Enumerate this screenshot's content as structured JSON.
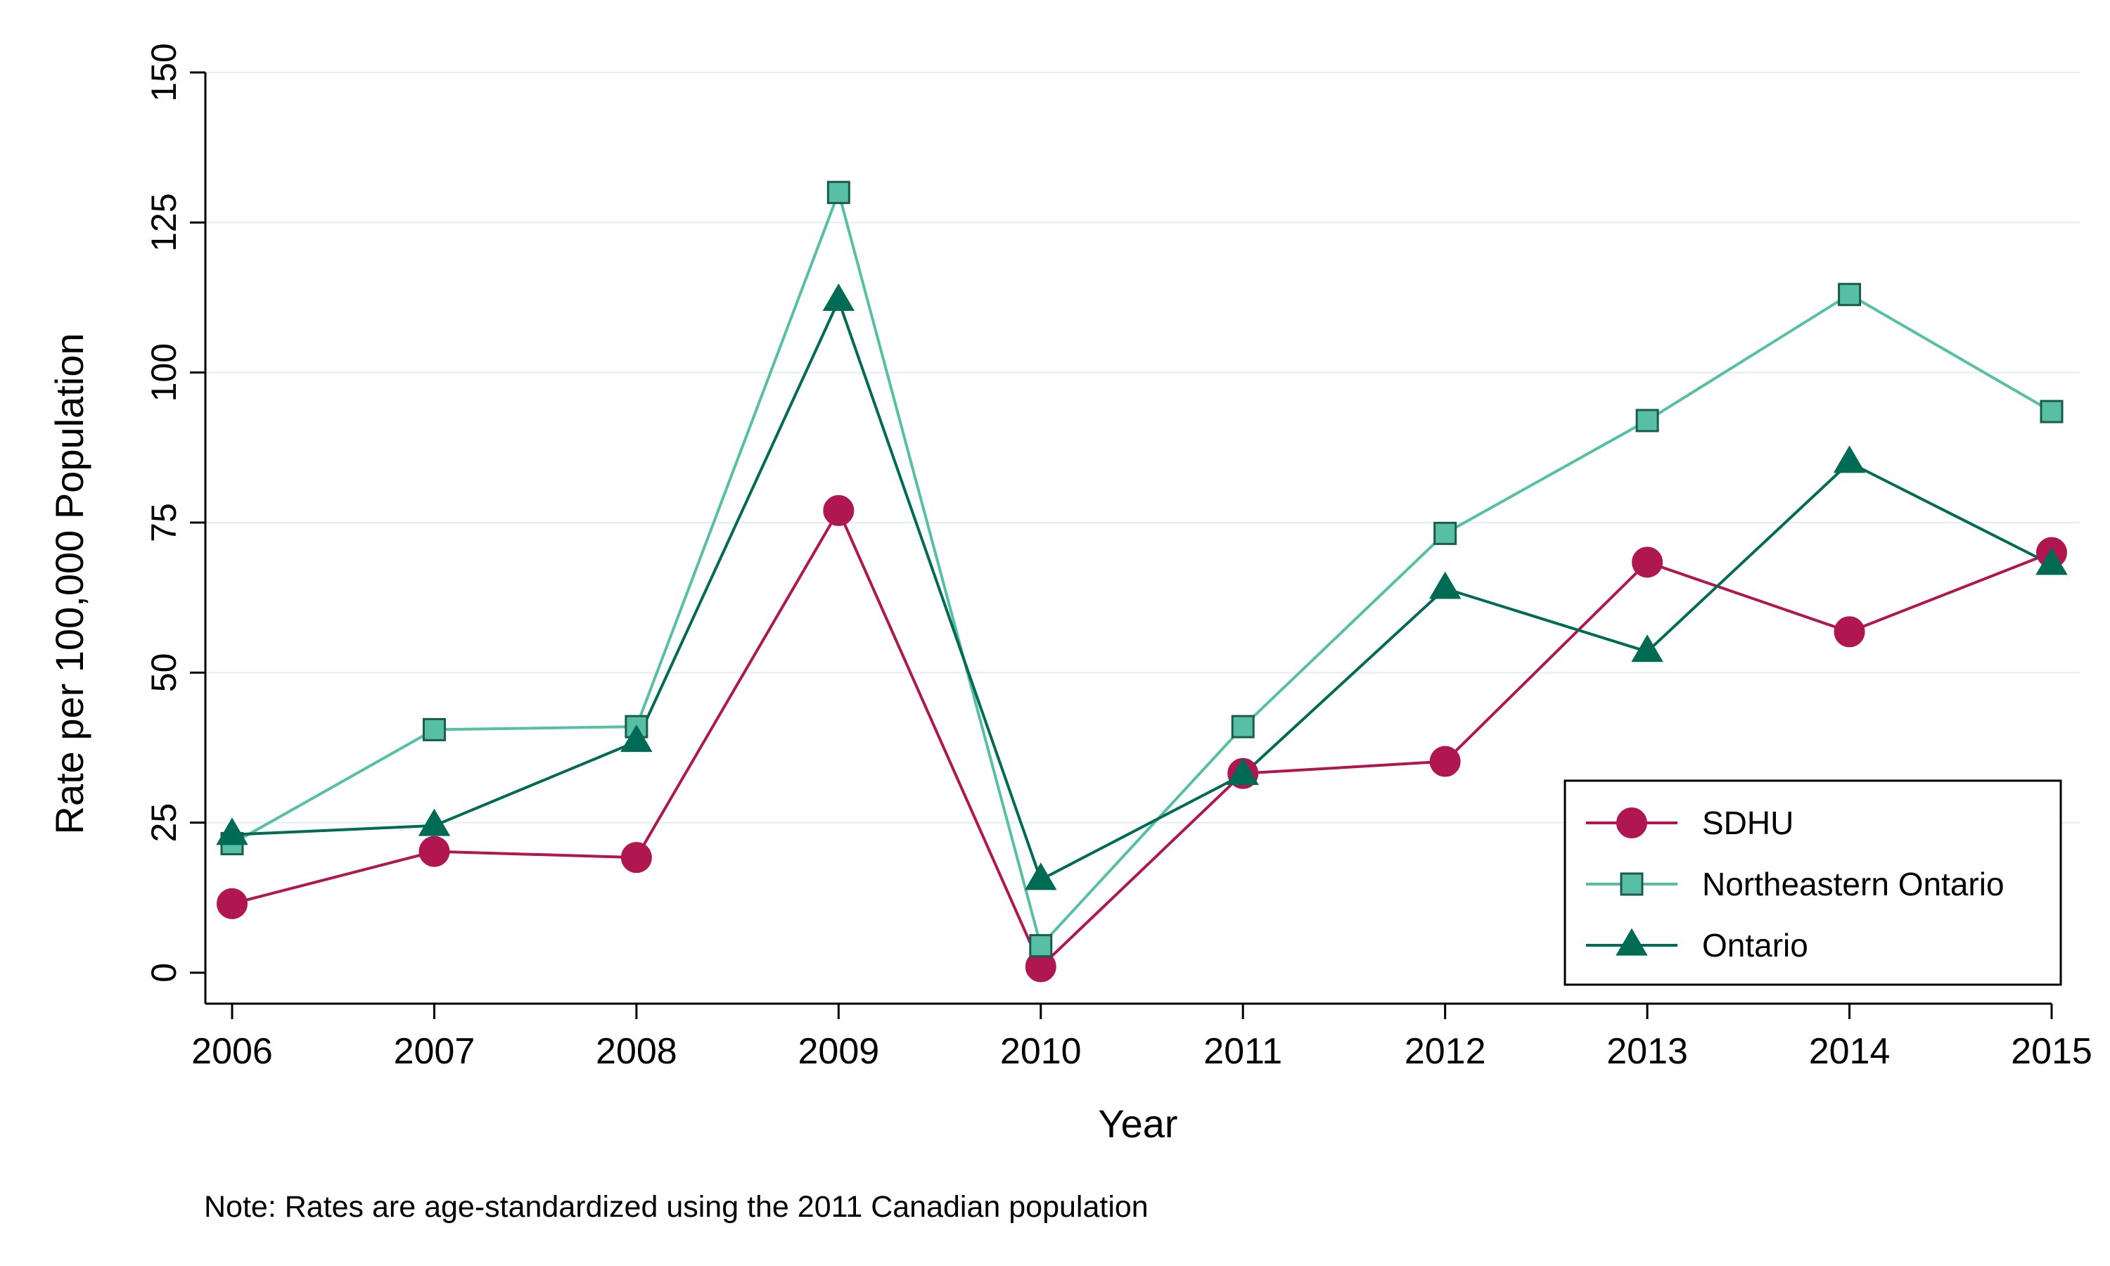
{
  "chart_data": {
    "type": "line",
    "xlabel": "Year",
    "ylabel": "Rate per 100,000 Population",
    "x": [
      2006,
      2007,
      2008,
      2009,
      2010,
      2011,
      2012,
      2013,
      2014,
      2015
    ],
    "x_tick_labels": [
      "2006",
      "2007",
      "2008",
      "2009",
      "2010",
      "2011",
      "2012",
      "2013",
      "2014",
      "2015"
    ],
    "ylim": [
      0,
      150
    ],
    "y_ticks": [
      0,
      25,
      50,
      75,
      100,
      125,
      150
    ],
    "y_tick_labels": [
      "0",
      "25",
      "50",
      "75",
      "100",
      "125",
      "150"
    ],
    "grid": "horizontal",
    "legend_position": "bottom-right",
    "note": "Note: Rates are age-standardized using the 2011 Canadian population",
    "series": [
      {
        "name": "SDHU",
        "color": "#B0164F",
        "marker": "circle",
        "values": [
          11.5,
          20.2,
          19.2,
          77.0,
          1.0,
          33.2,
          35.2,
          68.4,
          56.8,
          70.0
        ]
      },
      {
        "name": "Northeastern Ontario",
        "color": "#56BFA4",
        "marker": "square",
        "values": [
          21.5,
          40.5,
          41.0,
          130.0,
          4.5,
          41.0,
          73.2,
          92.0,
          113.0,
          93.5
        ]
      },
      {
        "name": "Ontario",
        "color": "#006B54",
        "marker": "triangle",
        "values": [
          23.0,
          24.5,
          38.5,
          112.0,
          15.5,
          33.0,
          64.0,
          53.5,
          85.0,
          68.0
        ]
      }
    ]
  }
}
